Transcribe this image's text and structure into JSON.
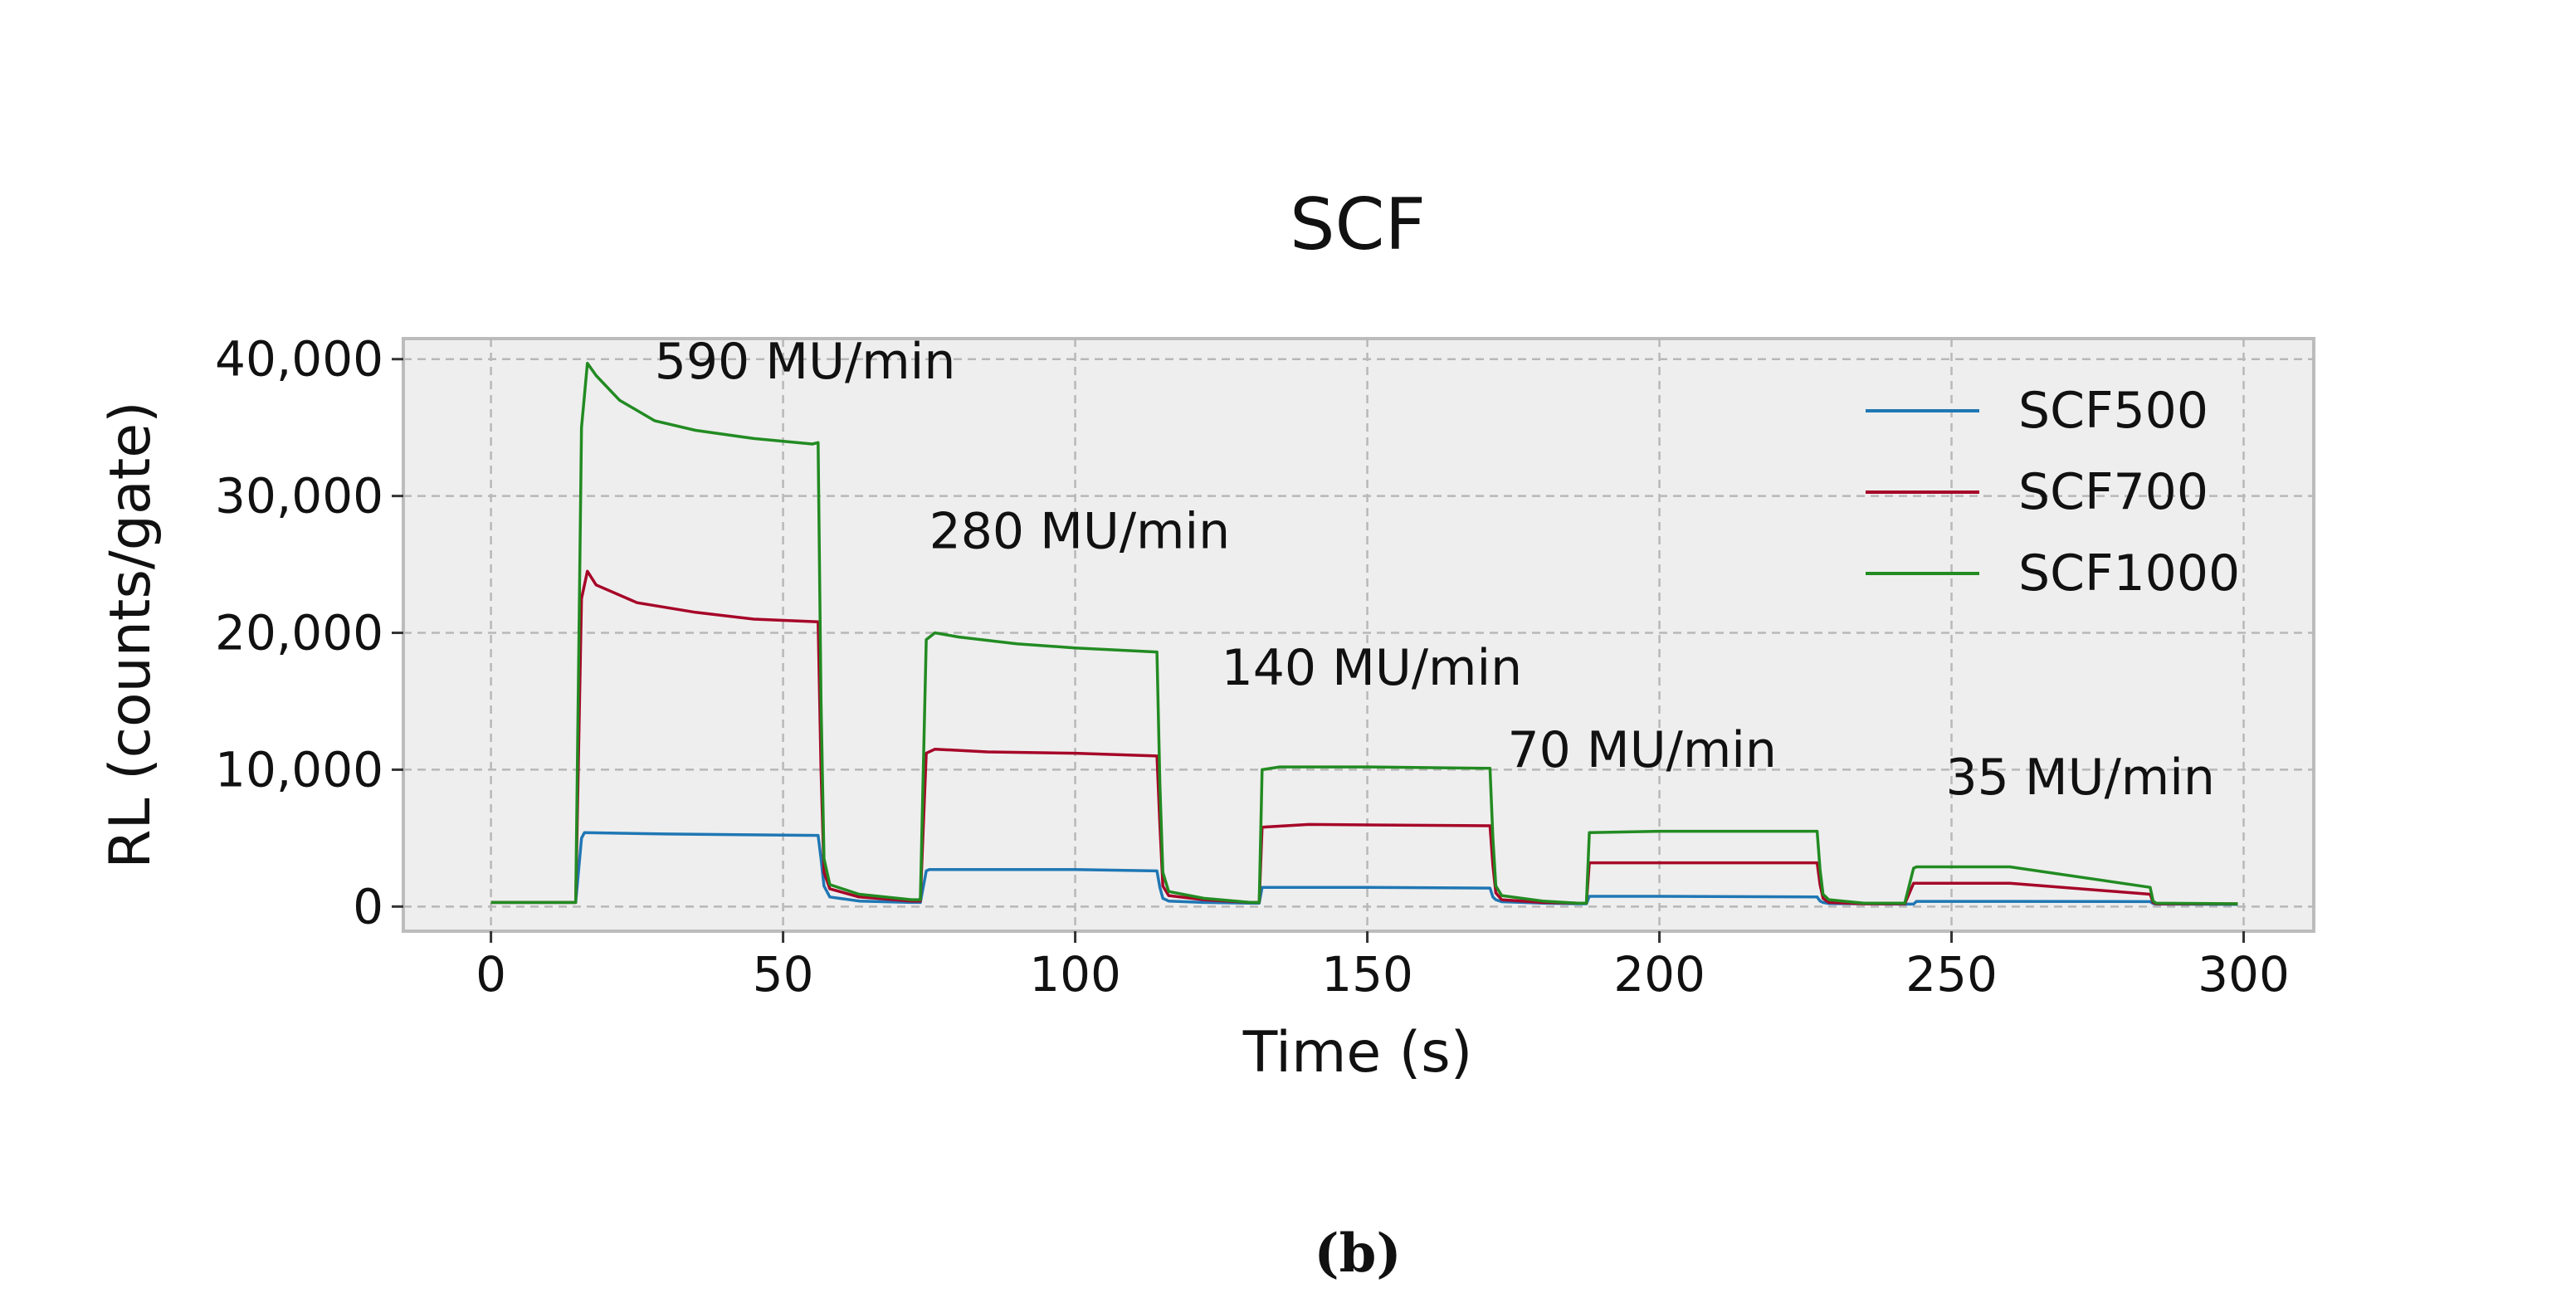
{
  "chart_data": {
    "type": "line",
    "title": "SCF",
    "xlabel": "Time (s)",
    "ylabel": "RL (counts/gate)",
    "xlim": [
      -15,
      312
    ],
    "ylim": [
      -1800,
      41500
    ],
    "xticks": [
      0,
      50,
      100,
      150,
      200,
      250,
      300
    ],
    "yticks": [
      0,
      10000,
      20000,
      30000,
      40000
    ],
    "xtick_labels": [
      "0",
      "50",
      "100",
      "150",
      "200",
      "250",
      "300"
    ],
    "ytick_labels": [
      "0",
      "10,000",
      "20,000",
      "30,000",
      "40,000"
    ],
    "grid": true,
    "legend_position": "top-right",
    "series": [
      {
        "name": "SCF500",
        "color": "#1f77b4",
        "x": [
          0,
          14.5,
          15.5,
          16,
          30,
          56,
          56.5,
          57,
          58,
          63,
          72,
          73.5,
          74.5,
          75,
          100,
          114,
          114.5,
          115,
          116,
          122,
          130,
          131.5,
          132,
          150,
          171,
          171.5,
          172,
          173,
          180,
          186,
          187.5,
          188,
          200,
          227,
          227.5,
          228,
          229,
          235,
          242,
          243.5,
          244,
          260,
          284,
          284.5,
          285,
          299
        ],
        "y": [
          300,
          300,
          5000,
          5400,
          5300,
          5200,
          3500,
          1500,
          700,
          400,
          300,
          300,
          2600,
          2700,
          2700,
          2600,
          1400,
          600,
          400,
          300,
          250,
          250,
          1400,
          1400,
          1350,
          700,
          500,
          350,
          250,
          200,
          200,
          750,
          750,
          700,
          400,
          300,
          220,
          200,
          180,
          180,
          380,
          380,
          360,
          220,
          180,
          150
        ]
      },
      {
        "name": "SCF700",
        "color": "#a60628",
        "x": [
          0,
          14.5,
          15.5,
          16.5,
          18,
          25,
          35,
          45,
          56,
          56.5,
          57,
          58,
          63,
          72,
          73.5,
          74.5,
          76,
          85,
          100,
          114,
          114.5,
          115,
          116,
          122,
          130,
          131.5,
          132,
          140,
          171,
          171.5,
          172,
          173,
          180,
          186,
          187.5,
          188,
          200,
          227,
          227.5,
          228,
          229,
          235,
          242,
          243.5,
          244,
          260,
          284,
          284.5,
          285,
          299
        ],
        "y": [
          300,
          300,
          22500,
          24500,
          23500,
          22200,
          21500,
          21000,
          20800,
          10000,
          2500,
          1300,
          700,
          400,
          400,
          11200,
          11500,
          11300,
          11200,
          11000,
          6000,
          1500,
          800,
          500,
          300,
          300,
          5800,
          6000,
          5900,
          3000,
          1000,
          500,
          300,
          250,
          250,
          3200,
          3200,
          3200,
          1600,
          600,
          300,
          200,
          200,
          1700,
          1700,
          1700,
          900,
          300,
          200,
          200
        ]
      },
      {
        "name": "SCF1000",
        "color": "#228b22",
        "x": [
          0,
          14.5,
          15.5,
          16.5,
          18,
          22,
          28,
          35,
          45,
          55,
          56,
          56.5,
          57,
          58,
          63,
          72,
          73.5,
          74.5,
          76,
          80,
          90,
          100,
          114,
          114.5,
          115,
          116,
          122,
          130,
          131.5,
          132,
          135,
          150,
          171,
          171.5,
          172,
          173,
          180,
          186,
          187.5,
          188,
          200,
          227,
          227.5,
          228,
          229,
          235,
          242,
          243.5,
          244,
          260,
          284,
          284.5,
          285,
          299
        ],
        "y": [
          300,
          300,
          35000,
          39700,
          38800,
          37000,
          35500,
          34800,
          34200,
          33800,
          33900,
          15000,
          3500,
          1600,
          900,
          500,
          500,
          19500,
          20000,
          19700,
          19200,
          18900,
          18600,
          9000,
          2500,
          1100,
          600,
          300,
          300,
          10000,
          10200,
          10200,
          10100,
          5000,
          1500,
          800,
          400,
          250,
          250,
          5400,
          5500,
          5500,
          2700,
          900,
          500,
          250,
          250,
          2800,
          2900,
          2900,
          1400,
          400,
          250,
          200
        ]
      }
    ],
    "annotations": [
      {
        "text": "590 MU/min",
        "x": 28,
        "y": 38600
      },
      {
        "text": "280 MU/min",
        "x": 75,
        "y": 26200
      },
      {
        "text": "140 MU/min",
        "x": 125,
        "y": 16200
      },
      {
        "text": "70 MU/min",
        "x": 174,
        "y": 10200
      },
      {
        "text": "35 MU/min",
        "x": 249,
        "y": 8200
      }
    ]
  },
  "caption": "(b)"
}
